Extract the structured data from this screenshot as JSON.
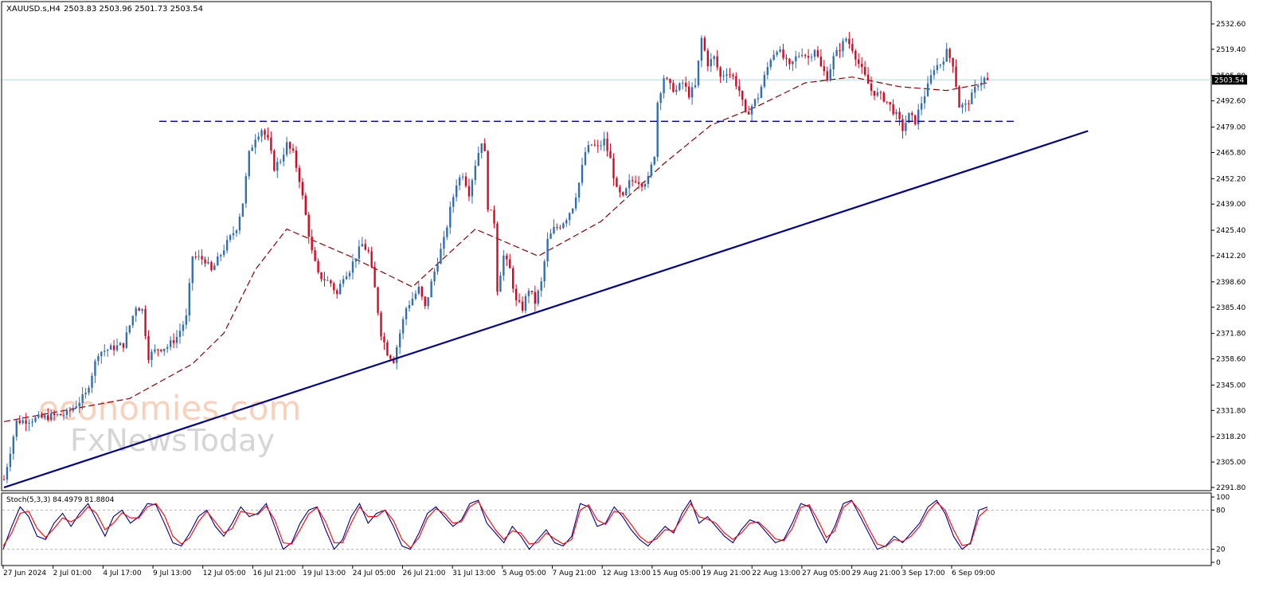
{
  "header": {
    "symbol": "XAUUSD.s,H4",
    "ohlc": "2503.83 2503.96 2501.73 2503.54"
  },
  "watermark": {
    "line1": "economies.com",
    "line2": "FxNewsToday"
  },
  "colors": {
    "bull": "#2f6db5",
    "bear": "#e3001b",
    "ma": "#8b0000",
    "trendline": "#00008b",
    "support": "#00008b",
    "current_price_line": "#add8e6",
    "stoch_main": "#00008b",
    "stoch_signal": "#ff0000"
  },
  "chart_data": [
    {
      "type": "candlestick",
      "symbol": "XAUUSD.s",
      "timeframe": "H4",
      "current_price": 2503.54,
      "ylim": [
        2291.8,
        2532.6
      ],
      "y_ticks": [
        "2532.60",
        "2519.40",
        "2505.80",
        "2492.60",
        "2479.00",
        "2465.80",
        "2452.20",
        "2439.00",
        "2425.40",
        "2412.20",
        "2398.60",
        "2385.40",
        "2371.80",
        "2358.60",
        "2345.00",
        "2331.80",
        "2318.20",
        "2305.00",
        "2291.80"
      ],
      "x_tick_labels": [
        "27 Jun 2024",
        "2 Jul 01:00",
        "4 Jul 17:00",
        "9 Jul 13:00",
        "12 Jul 05:00",
        "16 Jul 21:00",
        "19 Jul 13:00",
        "24 Jul 05:00",
        "26 Jul 21:00",
        "31 Jul 13:00",
        "5 Aug 05:00",
        "7 Aug 21:00",
        "12 Aug 13:00",
        "15 Aug 05:00",
        "19 Aug 21:00",
        "22 Aug 13:00",
        "27 Aug 05:00",
        "29 Aug 21:00",
        "3 Sep 17:00",
        "6 Sep 09:00"
      ],
      "price_path": [
        [
          0,
          2296
        ],
        [
          4,
          2326
        ],
        [
          12,
          2328
        ],
        [
          20,
          2330
        ],
        [
          26,
          2340
        ],
        [
          30,
          2362
        ],
        [
          34,
          2364
        ],
        [
          38,
          2366
        ],
        [
          40,
          2376
        ],
        [
          42,
          2386
        ],
        [
          44,
          2384
        ],
        [
          46,
          2360
        ],
        [
          49,
          2364
        ],
        [
          52,
          2365
        ],
        [
          55,
          2370
        ],
        [
          58,
          2380
        ],
        [
          60,
          2412
        ],
        [
          64,
          2410
        ],
        [
          66,
          2404
        ],
        [
          70,
          2416
        ],
        [
          74,
          2427
        ],
        [
          76,
          2440
        ],
        [
          78,
          2465
        ],
        [
          80,
          2474
        ],
        [
          82,
          2478
        ],
        [
          84,
          2472
        ],
        [
          86,
          2458
        ],
        [
          88,
          2462
        ],
        [
          90,
          2470
        ],
        [
          92,
          2465
        ],
        [
          94,
          2452
        ],
        [
          96,
          2433
        ],
        [
          98,
          2414
        ],
        [
          100,
          2402
        ],
        [
          102,
          2400
        ],
        [
          104,
          2398
        ],
        [
          106,
          2392
        ],
        [
          108,
          2402
        ],
        [
          110,
          2405
        ],
        [
          112,
          2412
        ],
        [
          114,
          2418
        ],
        [
          116,
          2414
        ],
        [
          118,
          2395
        ],
        [
          120,
          2372
        ],
        [
          122,
          2362
        ],
        [
          124,
          2358
        ],
        [
          126,
          2372
        ],
        [
          128,
          2385
        ],
        [
          130,
          2390
        ],
        [
          132,
          2395
        ],
        [
          134,
          2385
        ],
        [
          136,
          2398
        ],
        [
          138,
          2410
        ],
        [
          140,
          2420
        ],
        [
          142,
          2436
        ],
        [
          144,
          2450
        ],
        [
          146,
          2455
        ],
        [
          148,
          2445
        ],
        [
          150,
          2460
        ],
        [
          152,
          2472
        ],
        [
          153,
          2465
        ],
        [
          154,
          2438
        ],
        [
          156,
          2430
        ],
        [
          157,
          2395
        ],
        [
          159,
          2412
        ],
        [
          161,
          2405
        ],
        [
          163,
          2388
        ],
        [
          165,
          2385
        ],
        [
          167,
          2395
        ],
        [
          169,
          2388
        ],
        [
          171,
          2398
        ],
        [
          173,
          2420
        ],
        [
          175,
          2426
        ],
        [
          177,
          2428
        ],
        [
          179,
          2432
        ],
        [
          181,
          2438
        ],
        [
          183,
          2450
        ],
        [
          185,
          2466
        ],
        [
          187,
          2470
        ],
        [
          189,
          2468
        ],
        [
          191,
          2472
        ],
        [
          193,
          2462
        ],
        [
          195,
          2446
        ],
        [
          197,
          2442
        ],
        [
          199,
          2450
        ],
        [
          201,
          2452
        ],
        [
          203,
          2450
        ],
        [
          205,
          2452
        ],
        [
          207,
          2465
        ],
        [
          208,
          2492
        ],
        [
          210,
          2505
        ],
        [
          212,
          2500
        ],
        [
          214,
          2498
        ],
        [
          216,
          2502
        ],
        [
          218,
          2496
        ],
        [
          220,
          2500
        ],
        [
          222,
          2525
        ],
        [
          224,
          2512
        ],
        [
          226,
          2515
        ],
        [
          228,
          2505
        ],
        [
          230,
          2508
        ],
        [
          232,
          2505
        ],
        [
          234,
          2498
        ],
        [
          236,
          2485
        ],
        [
          238,
          2490
        ],
        [
          240,
          2495
        ],
        [
          242,
          2505
        ],
        [
          244,
          2515
        ],
        [
          246,
          2520
        ],
        [
          248,
          2515
        ],
        [
          250,
          2510
        ],
        [
          252,
          2515
        ],
        [
          254,
          2518
        ],
        [
          256,
          2515
        ],
        [
          258,
          2520
        ],
        [
          260,
          2510
        ],
        [
          262,
          2505
        ],
        [
          264,
          2515
        ],
        [
          266,
          2520
        ],
        [
          268,
          2525
        ],
        [
          270,
          2520
        ],
        [
          272,
          2512
        ],
        [
          274,
          2505
        ],
        [
          276,
          2498
        ],
        [
          278,
          2496
        ],
        [
          280,
          2494
        ],
        [
          282,
          2490
        ],
        [
          284,
          2485
        ],
        [
          286,
          2478
        ],
        [
          288,
          2485
        ],
        [
          290,
          2482
        ],
        [
          292,
          2492
        ],
        [
          294,
          2500
        ],
        [
          296,
          2510
        ],
        [
          298,
          2512
        ],
        [
          300,
          2518
        ],
        [
          302,
          2512
        ],
        [
          304,
          2490
        ],
        [
          306,
          2490
        ],
        [
          308,
          2495
        ],
        [
          310,
          2502
        ],
        [
          312,
          2504
        ],
        [
          313,
          2503.54
        ]
      ],
      "indicators": [
        {
          "name": "Moving Average",
          "style": "dashed",
          "path": [
            [
              0,
              2326
            ],
            [
              40,
              2338
            ],
            [
              60,
              2356
            ],
            [
              70,
              2372
            ],
            [
              80,
              2405
            ],
            [
              90,
              2426
            ],
            [
              110,
              2412
            ],
            [
              130,
              2396
            ],
            [
              150,
              2426
            ],
            [
              170,
              2412
            ],
            [
              190,
              2430
            ],
            [
              210,
              2460
            ],
            [
              225,
              2480
            ],
            [
              240,
              2490
            ],
            [
              255,
              2502
            ],
            [
              270,
              2505
            ],
            [
              285,
              2500
            ],
            [
              300,
              2498
            ],
            [
              313,
              2502
            ]
          ]
        },
        {
          "name": "Ascending trendline",
          "from": [
            0,
            2291.8
          ],
          "to": [
            345,
            2477
          ]
        },
        {
          "name": "Horizontal resistance/support",
          "style": "dashed",
          "level": 2482
        }
      ]
    },
    {
      "type": "line",
      "title": "Stoch(5,3,3) 84.4979 81.8804",
      "ylim": [
        0,
        100
      ],
      "y_ticks": [
        "100",
        "80",
        "20",
        "0"
      ],
      "levels": [
        80,
        20
      ],
      "series": [
        {
          "name": "main",
          "values": [
            20,
            55,
            85,
            70,
            40,
            35,
            60,
            75,
            55,
            75,
            90,
            65,
            40,
            70,
            80,
            60,
            70,
            90,
            88,
            60,
            30,
            25,
            45,
            70,
            80,
            55,
            40,
            60,
            85,
            70,
            75,
            90,
            55,
            20,
            30,
            60,
            80,
            85,
            50,
            20,
            35,
            70,
            90,
            60,
            75,
            80,
            55,
            25,
            20,
            45,
            75,
            85,
            70,
            55,
            65,
            90,
            95,
            60,
            45,
            30,
            55,
            40,
            20,
            35,
            50,
            30,
            25,
            40,
            90,
            85,
            55,
            60,
            85,
            70,
            50,
            35,
            25,
            40,
            55,
            45,
            75,
            95,
            60,
            70,
            55,
            40,
            30,
            50,
            65,
            60,
            45,
            30,
            35,
            60,
            90,
            85,
            55,
            30,
            55,
            90,
            95,
            70,
            45,
            20,
            25,
            40,
            30,
            45,
            60,
            85,
            95,
            75,
            40,
            20,
            30,
            80,
            84.5
          ]
        },
        {
          "name": "signal",
          "values": [
            25,
            45,
            75,
            78,
            52,
            38,
            52,
            68,
            62,
            70,
            85,
            75,
            50,
            60,
            76,
            68,
            68,
            85,
            90,
            72,
            40,
            28,
            38,
            62,
            78,
            62,
            45,
            52,
            78,
            75,
            73,
            86,
            65,
            30,
            28,
            50,
            74,
            84,
            62,
            30,
            30,
            60,
            85,
            70,
            70,
            80,
            64,
            35,
            22,
            38,
            68,
            82,
            75,
            60,
            62,
            85,
            93,
            70,
            50,
            35,
            48,
            45,
            28,
            30,
            45,
            36,
            28,
            35,
            80,
            88,
            65,
            58,
            78,
            75,
            58,
            40,
            30,
            36,
            50,
            48,
            68,
            90,
            70,
            66,
            60,
            45,
            35,
            45,
            60,
            62,
            50,
            36,
            33,
            52,
            84,
            88,
            65,
            38,
            48,
            84,
            94,
            78,
            52,
            28,
            24,
            35,
            32,
            40,
            55,
            78,
            92,
            80,
            50,
            26,
            28,
            70,
            81.9
          ]
        }
      ]
    }
  ]
}
